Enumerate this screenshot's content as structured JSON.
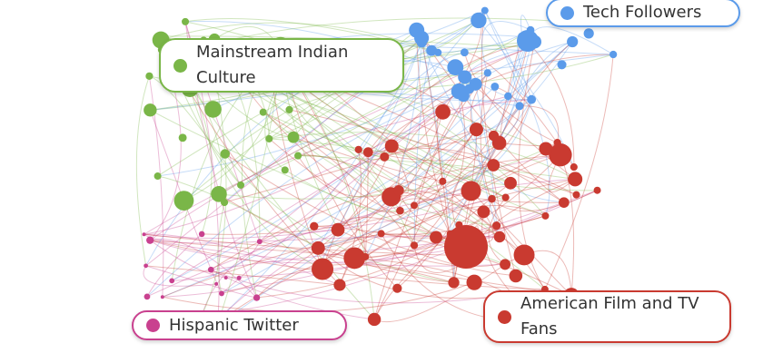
{
  "clusters": [
    {
      "label": "Tech Followers",
      "color": "#5b9bea"
    },
    {
      "label": "Mainstream Indian Culture",
      "color": "#7ab648"
    },
    {
      "label": "Hispanic Twitter",
      "color": "#c9418f"
    },
    {
      "label": "American Film and TV Fans",
      "color": "#c93a30"
    }
  ]
}
